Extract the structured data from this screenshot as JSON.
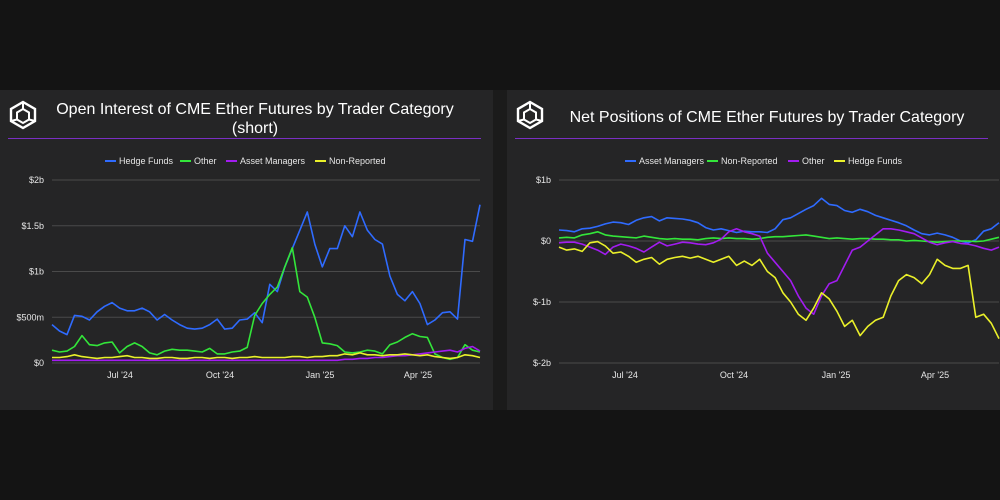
{
  "charts": [
    {
      "type": "line",
      "title": "Open Interest of CME Ether Futures by Trader Category (short)",
      "x_ticks": [
        "Jul '24",
        "Oct '24",
        "Jan '25",
        "Apr '25"
      ],
      "y_ticks": [
        "$0",
        "$500m",
        "$1b",
        "$1.5b",
        "$2b"
      ],
      "ylim": [
        0,
        2000000000
      ],
      "grid": true,
      "legend_position": "top",
      "legend": [
        "Hedge Funds",
        "Other",
        "Asset Managers",
        "Non-Reported"
      ],
      "series": [
        {
          "name": "Hedge Funds",
          "color": "#2f6bff",
          "values": [
            420000000,
            350000000,
            310000000,
            520000000,
            510000000,
            470000000,
            560000000,
            620000000,
            660000000,
            600000000,
            570000000,
            570000000,
            600000000,
            560000000,
            470000000,
            530000000,
            470000000,
            420000000,
            380000000,
            370000000,
            380000000,
            420000000,
            480000000,
            370000000,
            380000000,
            470000000,
            480000000,
            550000000,
            440000000,
            860000000,
            780000000,
            1050000000,
            1250000000,
            1450000000,
            1650000000,
            1300000000,
            1050000000,
            1250000000,
            1250000000,
            1500000000,
            1380000000,
            1650000000,
            1450000000,
            1350000000,
            1300000000,
            950000000,
            750000000,
            680000000,
            780000000,
            650000000,
            420000000,
            470000000,
            550000000,
            560000000,
            480000000,
            1350000000,
            1330000000,
            1730000000
          ]
        },
        {
          "name": "Other",
          "color": "#33e63a",
          "values": [
            140000000,
            120000000,
            130000000,
            180000000,
            300000000,
            200000000,
            190000000,
            220000000,
            230000000,
            110000000,
            180000000,
            220000000,
            180000000,
            110000000,
            90000000,
            130000000,
            150000000,
            140000000,
            140000000,
            130000000,
            120000000,
            160000000,
            100000000,
            100000000,
            120000000,
            130000000,
            170000000,
            520000000,
            650000000,
            750000000,
            830000000,
            1050000000,
            1260000000,
            780000000,
            720000000,
            500000000,
            220000000,
            210000000,
            190000000,
            120000000,
            110000000,
            120000000,
            140000000,
            130000000,
            100000000,
            200000000,
            230000000,
            280000000,
            320000000,
            290000000,
            280000000,
            100000000,
            60000000,
            40000000,
            60000000,
            200000000,
            140000000,
            120000000
          ]
        },
        {
          "name": "Asset Managers",
          "color": "#a21cf0",
          "values": [
            30000000,
            30000000,
            30000000,
            30000000,
            30000000,
            30000000,
            30000000,
            30000000,
            30000000,
            30000000,
            30000000,
            30000000,
            30000000,
            30000000,
            30000000,
            30000000,
            30000000,
            30000000,
            30000000,
            30000000,
            30000000,
            30000000,
            30000000,
            30000000,
            30000000,
            30000000,
            30000000,
            30000000,
            30000000,
            30000000,
            30000000,
            30000000,
            30000000,
            30000000,
            30000000,
            30000000,
            30000000,
            30000000,
            30000000,
            40000000,
            40000000,
            50000000,
            50000000,
            60000000,
            60000000,
            70000000,
            80000000,
            80000000,
            90000000,
            100000000,
            110000000,
            120000000,
            130000000,
            140000000,
            120000000,
            160000000,
            180000000,
            130000000
          ]
        },
        {
          "name": "Non-Reported",
          "color": "#eaf02a",
          "values": [
            60000000,
            60000000,
            70000000,
            90000000,
            70000000,
            60000000,
            50000000,
            60000000,
            60000000,
            70000000,
            80000000,
            60000000,
            60000000,
            50000000,
            50000000,
            60000000,
            60000000,
            50000000,
            50000000,
            60000000,
            60000000,
            50000000,
            60000000,
            60000000,
            50000000,
            60000000,
            60000000,
            70000000,
            60000000,
            60000000,
            60000000,
            60000000,
            70000000,
            70000000,
            60000000,
            70000000,
            70000000,
            80000000,
            80000000,
            100000000,
            90000000,
            110000000,
            90000000,
            90000000,
            80000000,
            90000000,
            90000000,
            100000000,
            90000000,
            80000000,
            90000000,
            70000000,
            60000000,
            50000000,
            60000000,
            90000000,
            80000000,
            60000000
          ]
        }
      ]
    },
    {
      "type": "line",
      "title": "Net Positions of CME Ether Futures by Trader Category",
      "x_ticks": [
        "Jul '24",
        "Oct '24",
        "Jan '25",
        "Apr '25"
      ],
      "y_ticks": [
        "$-2b",
        "$-1b",
        "$0",
        "$1b"
      ],
      "ylim": [
        -2000000000,
        1000000000
      ],
      "grid": true,
      "legend_position": "top",
      "legend": [
        "Asset Managers",
        "Non-Reported",
        "Other",
        "Hedge Funds"
      ],
      "series": [
        {
          "name": "Asset Managers",
          "color": "#2f6bff",
          "values": [
            180000000,
            170000000,
            150000000,
            200000000,
            210000000,
            240000000,
            280000000,
            310000000,
            300000000,
            270000000,
            340000000,
            380000000,
            400000000,
            330000000,
            380000000,
            370000000,
            360000000,
            340000000,
            300000000,
            220000000,
            180000000,
            200000000,
            170000000,
            140000000,
            160000000,
            150000000,
            150000000,
            140000000,
            200000000,
            350000000,
            380000000,
            450000000,
            520000000,
            580000000,
            700000000,
            600000000,
            580000000,
            500000000,
            470000000,
            520000000,
            480000000,
            420000000,
            380000000,
            340000000,
            300000000,
            250000000,
            180000000,
            120000000,
            100000000,
            130000000,
            100000000,
            60000000,
            0,
            -30000000,
            20000000,
            160000000,
            200000000,
            300000000
          ]
        },
        {
          "name": "Non-Reported",
          "color": "#33e63a",
          "values": [
            50000000,
            60000000,
            50000000,
            100000000,
            120000000,
            150000000,
            100000000,
            80000000,
            70000000,
            60000000,
            50000000,
            80000000,
            60000000,
            40000000,
            30000000,
            40000000,
            30000000,
            30000000,
            20000000,
            40000000,
            50000000,
            40000000,
            50000000,
            40000000,
            40000000,
            30000000,
            40000000,
            60000000,
            70000000,
            70000000,
            80000000,
            90000000,
            100000000,
            80000000,
            60000000,
            40000000,
            50000000,
            40000000,
            30000000,
            40000000,
            40000000,
            30000000,
            30000000,
            20000000,
            20000000,
            0,
            10000000,
            0,
            -10000000,
            -20000000,
            -10000000,
            0,
            0,
            0,
            -10000000,
            0,
            30000000,
            60000000
          ]
        },
        {
          "name": "Other",
          "color": "#a21cf0",
          "values": [
            -30000000,
            -20000000,
            -20000000,
            -50000000,
            -100000000,
            -150000000,
            -220000000,
            -100000000,
            -50000000,
            -80000000,
            -120000000,
            -180000000,
            -100000000,
            -20000000,
            -80000000,
            -50000000,
            -20000000,
            -30000000,
            -50000000,
            -60000000,
            -30000000,
            30000000,
            150000000,
            200000000,
            150000000,
            120000000,
            80000000,
            -200000000,
            -350000000,
            -500000000,
            -650000000,
            -900000000,
            -1100000000,
            -1200000000,
            -900000000,
            -700000000,
            -650000000,
            -400000000,
            -150000000,
            -100000000,
            0,
            100000000,
            200000000,
            200000000,
            180000000,
            150000000,
            120000000,
            50000000,
            -20000000,
            -60000000,
            -30000000,
            -10000000,
            -40000000,
            -50000000,
            -80000000,
            -120000000,
            -150000000,
            -100000000
          ]
        },
        {
          "name": "Hedge Funds",
          "color": "#eaf02a",
          "values": [
            -100000000,
            -150000000,
            -130000000,
            -170000000,
            -30000000,
            -10000000,
            -80000000,
            -200000000,
            -180000000,
            -250000000,
            -350000000,
            -300000000,
            -270000000,
            -380000000,
            -300000000,
            -270000000,
            -250000000,
            -280000000,
            -250000000,
            -300000000,
            -350000000,
            -300000000,
            -250000000,
            -400000000,
            -330000000,
            -400000000,
            -300000000,
            -500000000,
            -600000000,
            -850000000,
            -1000000000,
            -1200000000,
            -1300000000,
            -1100000000,
            -850000000,
            -950000000,
            -1150000000,
            -1400000000,
            -1300000000,
            -1550000000,
            -1400000000,
            -1300000000,
            -1250000000,
            -900000000,
            -650000000,
            -550000000,
            -600000000,
            -700000000,
            -550000000,
            -300000000,
            -400000000,
            -450000000,
            -450000000,
            -400000000,
            -1250000000,
            -1200000000,
            -1350000000,
            -1600000000
          ]
        }
      ]
    }
  ]
}
